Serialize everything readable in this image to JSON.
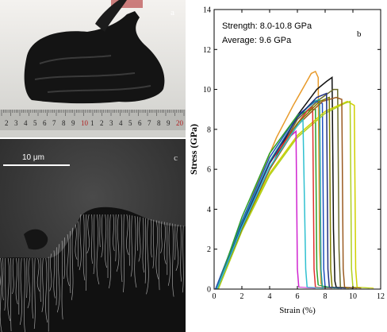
{
  "panels": {
    "a": {
      "letter": "a",
      "ruler_numbers": [
        "2",
        "3",
        "4",
        "5",
        "6",
        "7",
        "8",
        "9",
        "10",
        "1",
        "2",
        "3",
        "4",
        "5",
        "6",
        "7",
        "8",
        "9",
        "20"
      ]
    },
    "c": {
      "letter": "c",
      "scale_bar": "10 μm"
    },
    "b": {
      "letter": "b"
    }
  },
  "chart_data": {
    "type": "line",
    "title": "",
    "annotations": [
      "Strength: 8.0-10.8 GPa",
      "Average: 9.6 GPa"
    ],
    "xlabel": "Strain (%)",
    "ylabel": "Stress (GPa)",
    "xlim": [
      0,
      12
    ],
    "ylim": [
      0,
      14
    ],
    "xticks": [
      0,
      2,
      4,
      6,
      8,
      10,
      12
    ],
    "yticks": [
      0,
      2,
      4,
      6,
      8,
      10,
      12,
      14
    ],
    "series": [
      {
        "color": "#e89a2a",
        "x": [
          0.1,
          1.5,
          3,
          4.5,
          5.7,
          6.6,
          7.0,
          7.3,
          7.5,
          7.6,
          7.7,
          7.8
        ],
        "y": [
          0,
          2.4,
          5.1,
          7.6,
          9.2,
          10.3,
          10.8,
          10.9,
          10.6,
          2.0,
          0.3,
          0.1
        ],
        "fall_x": [
          7.6,
          7.7,
          7.8
        ]
      },
      {
        "color": "#111111",
        "x": [
          0.2,
          2,
          4,
          6,
          7.4,
          8.1,
          8.5,
          8.6,
          8.7,
          8.8
        ],
        "y": [
          0,
          3.0,
          6.0,
          8.7,
          10.0,
          10.4,
          10.6,
          3.0,
          0.4,
          0.1
        ]
      },
      {
        "color": "#6a6a2a",
        "x": [
          0.2,
          2,
          4,
          6,
          7.6,
          8.6,
          8.9,
          9.0,
          9.1
        ],
        "y": [
          0,
          3.0,
          6.0,
          8.5,
          9.5,
          10.0,
          10.0,
          2.0,
          0.1
        ]
      },
      {
        "color": "#1f4fbf",
        "x": [
          0.1,
          2,
          4,
          6,
          7.3,
          7.8,
          7.9,
          8.0
        ],
        "y": [
          0,
          3.4,
          6.6,
          8.7,
          9.4,
          9.3,
          1.0,
          0.1
        ]
      },
      {
        "color": "#2ca02c",
        "x": [
          0.2,
          2,
          4,
          6,
          7.0,
          7.3,
          7.4,
          7.5
        ],
        "y": [
          0,
          3.6,
          6.8,
          8.7,
          9.0,
          9.0,
          1.0,
          0.2
        ]
      },
      {
        "color": "#d0d000",
        "x": [
          0.3,
          2,
          4,
          6,
          8,
          9.6,
          10.1,
          10.2,
          10.3
        ],
        "y": [
          0,
          3.0,
          5.8,
          7.7,
          8.9,
          9.4,
          9.2,
          1.0,
          0.1
        ]
      },
      {
        "color": "#b0d020",
        "x": [
          0.3,
          2,
          4,
          6,
          8,
          9.4,
          9.8,
          9.9,
          10.0
        ],
        "y": [
          0,
          2.9,
          5.7,
          7.6,
          8.8,
          9.3,
          9.4,
          1.0,
          0.1
        ]
      },
      {
        "color": "#d024d0",
        "x": [
          0.2,
          2,
          4,
          5.4,
          5.9,
          6.0,
          6.1
        ],
        "y": [
          0,
          3.1,
          6.0,
          7.6,
          7.9,
          1.0,
          0.1
        ]
      },
      {
        "color": "#e03030",
        "x": [
          0.2,
          2,
          4,
          6,
          6.8,
          7.1,
          7.2,
          7.3
        ],
        "y": [
          0,
          3.2,
          6.3,
          8.3,
          9.0,
          9.1,
          1.0,
          0.1
        ]
      },
      {
        "color": "#20a0a0",
        "x": [
          0.2,
          2,
          4,
          6,
          7.2,
          7.6,
          7.7,
          7.8
        ],
        "y": [
          0,
          3.3,
          6.4,
          8.6,
          9.4,
          9.5,
          1.0,
          0.1
        ]
      },
      {
        "color": "#808000",
        "x": [
          0.2,
          2,
          4,
          6,
          7.6,
          8.3,
          8.4,
          8.5
        ],
        "y": [
          0,
          3.0,
          6.0,
          8.3,
          9.4,
          9.6,
          1.0,
          0.1
        ]
      },
      {
        "color": "#9a5a20",
        "x": [
          0.2,
          2,
          4,
          6,
          7.8,
          8.8,
          9.2,
          9.3,
          9.4
        ],
        "y": [
          0,
          3.1,
          6.0,
          8.2,
          9.4,
          9.6,
          9.5,
          1.0,
          0.1
        ]
      },
      {
        "color": "#203080",
        "x": [
          0.2,
          2,
          4,
          6,
          7.4,
          8.1,
          8.2,
          8.3
        ],
        "y": [
          0,
          3.2,
          6.3,
          8.6,
          9.6,
          9.8,
          1.0,
          0.1
        ]
      },
      {
        "color": "#30c0d0",
        "x": [
          0.2,
          2,
          4,
          5.8,
          6.4,
          6.6,
          6.7
        ],
        "y": [
          0,
          3.1,
          6.1,
          8.0,
          8.5,
          1.0,
          0.1
        ]
      }
    ]
  }
}
